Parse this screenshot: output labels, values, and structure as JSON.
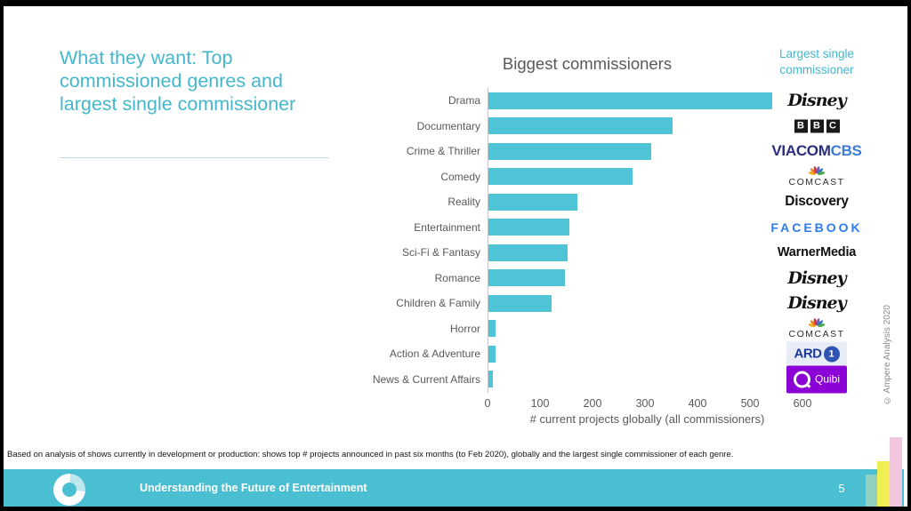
{
  "slide": {
    "title_lines": [
      "What they want: Top",
      "commissioned genres and",
      "largest single commissioner"
    ],
    "right_header_lines": [
      "Largest single",
      "commissioner"
    ],
    "footnote": "Based on analysis of  shows currently in development or production: shows top # projects announced in past six months (to Feb 2020), globally and the largest single commissioner of each genre.",
    "footer_text": "Understanding the Future of Entertainment",
    "page_number": "5",
    "copyright_vertical": "© Ampere Analysis 2020"
  },
  "colors": {
    "bar_teal": "#4fc4d6",
    "footer_teal": "#49bfd1",
    "title_teal": "#44b7cd",
    "axis_gray": "#595959"
  },
  "chart_data": {
    "type": "bar",
    "orientation": "horizontal",
    "title": "Biggest commissioners",
    "xlabel": "# current projects globally (all commissioners)",
    "xlim": [
      0,
      600
    ],
    "xticks": [
      0,
      100,
      200,
      300,
      400,
      500,
      600
    ],
    "grid": false,
    "categories": [
      "Drama",
      "Documentary",
      "Crime & Thriller",
      "Comedy",
      "Reality",
      "Entertainment",
      "Sci-Fi & Fantasy",
      "Romance",
      "Children & Family",
      "Horror",
      "Action & Adventure",
      "News & Current Affairs"
    ],
    "values": [
      540,
      350,
      310,
      275,
      170,
      155,
      150,
      145,
      120,
      13,
      13,
      8
    ],
    "bar_color": "#4fc4d6",
    "largest_single_commissioner": [
      "Disney",
      "BBC",
      "ViacomCBS",
      "Comcast",
      "Discovery",
      "Facebook",
      "WarnerMedia",
      "Disney",
      "Disney",
      "Comcast",
      "ARD",
      "Quibi"
    ],
    "logos": [
      {
        "type": "disney",
        "text": "Disney"
      },
      {
        "type": "bbc",
        "letters": [
          "B",
          "B",
          "C"
        ]
      },
      {
        "type": "viacomcbs",
        "parts": [
          {
            "text": "VIACOM",
            "color": "#2b2e7f"
          },
          {
            "text": "CBS",
            "color": "#3e7dd3"
          }
        ]
      },
      {
        "type": "comcast",
        "text": "COMCAST",
        "peacock_colors": [
          "#f2b01e",
          "#e87f24",
          "#d03a3a",
          "#7a5bac",
          "#2f74c9",
          "#4aa847"
        ]
      },
      {
        "type": "discovery",
        "text": "Discovery"
      },
      {
        "type": "facebook",
        "text": "FACEBOOK",
        "color": "#2e7cf0"
      },
      {
        "type": "warnermedia",
        "text": "WarnerMedia"
      },
      {
        "type": "disney",
        "text": "Disney"
      },
      {
        "type": "disney",
        "text": "Disney"
      },
      {
        "type": "comcast",
        "text": "COMCAST",
        "peacock_colors": [
          "#f2b01e",
          "#e87f24",
          "#d03a3a",
          "#7a5bac",
          "#2f74c9",
          "#4aa847"
        ]
      },
      {
        "type": "ard",
        "text": "ARD",
        "circle_text": "1"
      },
      {
        "type": "quibi",
        "text": "Quibi"
      }
    ]
  }
}
